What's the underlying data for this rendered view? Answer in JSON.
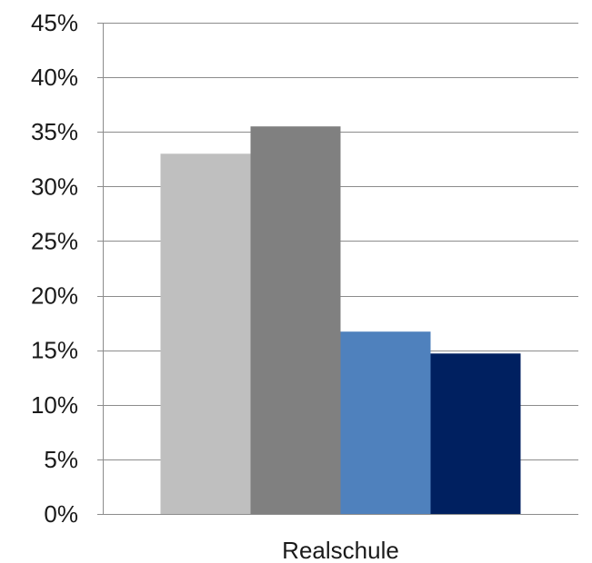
{
  "chart_data": {
    "type": "bar",
    "categories": [
      "Realschule"
    ],
    "series": [
      {
        "values": [
          33.0
        ],
        "color": "#bfbfbf"
      },
      {
        "values": [
          35.5
        ],
        "color": "#808080"
      },
      {
        "values": [
          16.7
        ],
        "color": "#4f81bd"
      },
      {
        "values": [
          14.7
        ],
        "color": "#002060"
      }
    ],
    "ylim": [
      0,
      45
    ],
    "y_ticks": [
      "0%",
      "5%",
      "10%",
      "15%",
      "20%",
      "25%",
      "30%",
      "35%",
      "40%",
      "45%"
    ],
    "y_tick_values": [
      0,
      5,
      10,
      15,
      20,
      25,
      30,
      35,
      40,
      45
    ],
    "grid": true,
    "legend": "none"
  }
}
